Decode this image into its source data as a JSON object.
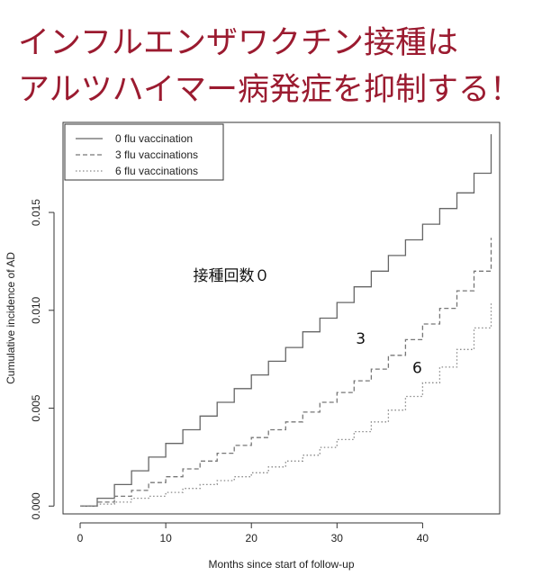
{
  "headline": {
    "line1": "インフルエンザワクチン接種は",
    "line2": "アルツハイマー病発症を抑制する！"
  },
  "chart_data": {
    "type": "line",
    "xlabel": "Months since start of follow-up",
    "ylabel": "Cumulative incidence of AD",
    "xlim": [
      -2,
      49
    ],
    "ylim": [
      -0.0004,
      0.0196
    ],
    "x_ticks": [
      0,
      10,
      20,
      30,
      40
    ],
    "y_ticks": [
      "0.000",
      "0.005",
      "0.010",
      "0.015"
    ],
    "grid": false,
    "legend_position": "top-left",
    "series": [
      {
        "name": "0 flu vaccination",
        "style": "solid",
        "color": "#666666",
        "x": [
          0,
          2,
          4,
          6,
          8,
          10,
          12,
          14,
          16,
          18,
          20,
          22,
          24,
          26,
          28,
          30,
          32,
          34,
          36,
          38,
          40,
          42,
          44,
          46,
          48
        ],
        "y": [
          0,
          0.0004,
          0.0011,
          0.0018,
          0.0025,
          0.0032,
          0.0039,
          0.0046,
          0.0053,
          0.006,
          0.0067,
          0.0074,
          0.0081,
          0.0089,
          0.0096,
          0.0104,
          0.0112,
          0.012,
          0.0128,
          0.0136,
          0.0144,
          0.0152,
          0.016,
          0.017,
          0.019
        ]
      },
      {
        "name": "3 flu vaccinations",
        "style": "dashed",
        "color": "#777777",
        "x": [
          0,
          2,
          4,
          6,
          8,
          10,
          12,
          14,
          16,
          18,
          20,
          22,
          24,
          26,
          28,
          30,
          32,
          34,
          36,
          38,
          40,
          42,
          44,
          46,
          48
        ],
        "y": [
          0,
          0.0002,
          0.0005,
          0.0008,
          0.0012,
          0.0015,
          0.0019,
          0.0023,
          0.0027,
          0.0031,
          0.0035,
          0.0039,
          0.0043,
          0.0048,
          0.0053,
          0.0058,
          0.0064,
          0.007,
          0.0077,
          0.0085,
          0.0093,
          0.0101,
          0.011,
          0.012,
          0.0137
        ]
      },
      {
        "name": "6 flu vaccinations",
        "style": "dotted",
        "color": "#888888",
        "x": [
          0,
          2,
          4,
          6,
          8,
          10,
          12,
          14,
          16,
          18,
          20,
          22,
          24,
          26,
          28,
          30,
          32,
          34,
          36,
          38,
          40,
          42,
          44,
          46,
          48
        ],
        "y": [
          0,
          0.0001,
          0.0002,
          0.0004,
          0.0005,
          0.0007,
          0.0009,
          0.0011,
          0.0013,
          0.0015,
          0.0017,
          0.002,
          0.0023,
          0.0026,
          0.003,
          0.0034,
          0.0038,
          0.0043,
          0.0049,
          0.0056,
          0.0063,
          0.0071,
          0.008,
          0.0091,
          0.0104
        ]
      }
    ],
    "annotations": [
      {
        "text": "接種回数０",
        "x": 13.2,
        "y": 0.0115
      },
      {
        "text": "3",
        "x": 32.2,
        "y": 0.0083
      },
      {
        "text": "6",
        "x": 38.8,
        "y": 0.0068
      }
    ]
  }
}
